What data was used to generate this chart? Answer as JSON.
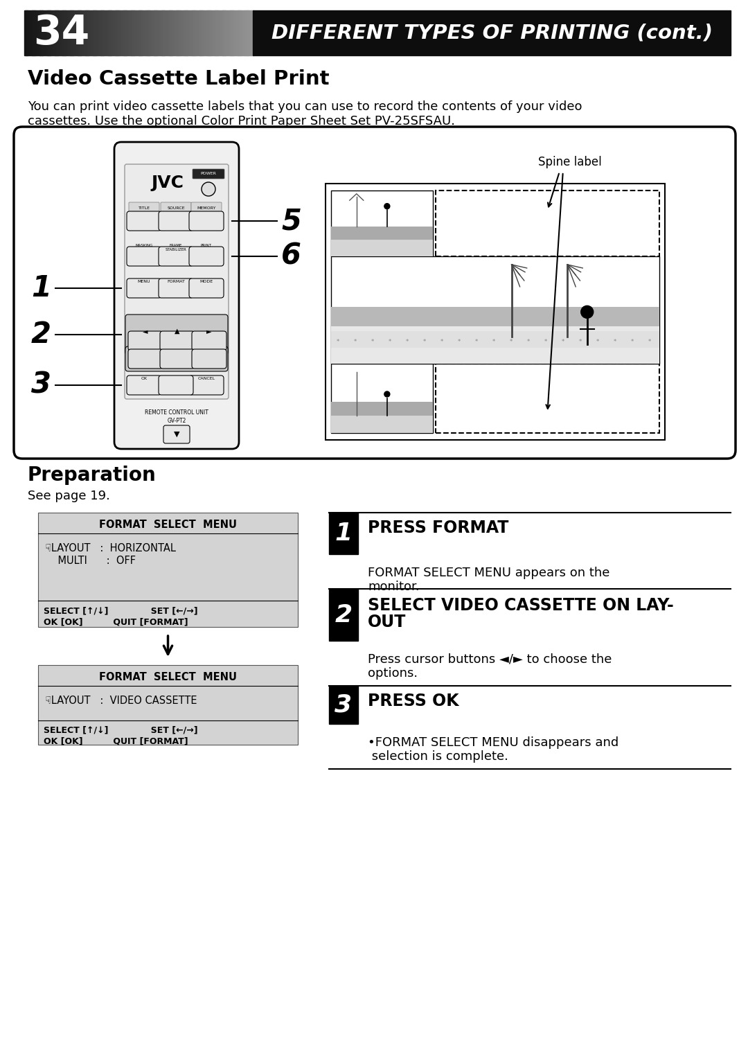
{
  "page_number": "34",
  "header_title": "DIFFERENT TYPES OF PRINTING (cont.)",
  "section_title": "Video Cassette Label Print",
  "intro_line1": "You can print video cassette labels that you can use to record the contents of your video",
  "intro_line2": "cassettes. Use the optional Color Print Paper Sheet Set PV-25SFSAU.",
  "spine_label_text": "Spine label",
  "preparation_title": "Preparation",
  "preparation_sub": "See page 19.",
  "menu_title": "FORMAT  SELECT  MENU",
  "menu_line1": "☟LAYOUT   :  HORIZONTAL",
  "menu_line2": "    MULTI      :  OFF",
  "menu_bottom1": "SELECT [↑/↓]              SET [←/→]",
  "menu_bottom2": "OK [OK]          QUIT [FORMAT]",
  "menu2_title": "FORMAT  SELECT  MENU",
  "menu2_line1": "☟LAYOUT   :  VIDEO CASSETTE",
  "step1_num": "1",
  "step1_title": "PRESS FORMAT",
  "step1_body1": "FORMAT SELECT MENU appears on the",
  "step1_body2": "monitor.",
  "step2_num": "2",
  "step2_title1": "SELECT VIDEO CASSETTE ON LAY-",
  "step2_title2": "OUT",
  "step2_body1": "Press cursor buttons ◄/► to choose the",
  "step2_body2": "options.",
  "step3_num": "3",
  "step3_title": "PRESS OK",
  "step3_body1": "•FORMAT SELECT MENU disappears and",
  "step3_body2": " selection is complete.",
  "bg_color": "#ffffff"
}
